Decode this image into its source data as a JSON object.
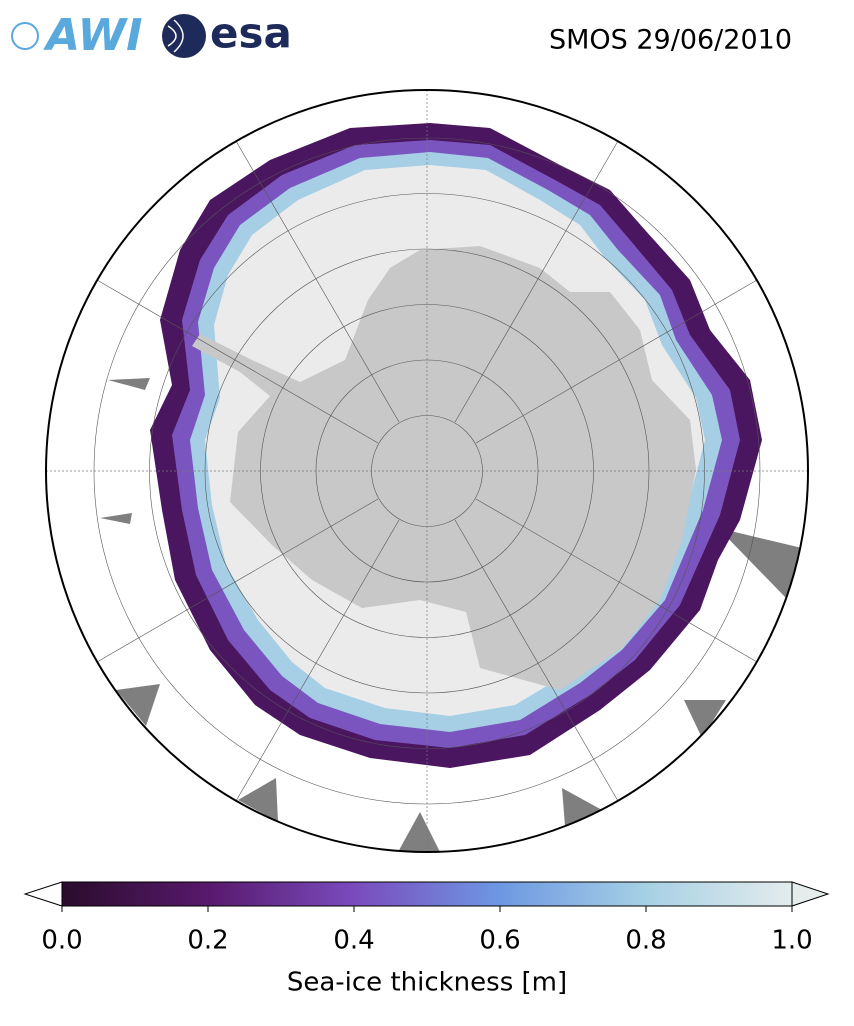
{
  "header": {
    "logos": [
      "AWI",
      "esa"
    ],
    "title": "SMOS 29/06/2010"
  },
  "colorbar": {
    "label": "Sea-ice thickness [m]",
    "lim": [
      0,
      1
    ],
    "ticks": [
      {
        "value": 0,
        "label": "0.0"
      },
      0.2,
      0.4,
      0.6,
      0.8,
      {
        "value": 1,
        "label": "1.0"
      }
    ],
    "colormap": [
      {
        "value": 0,
        "color": "#2a0c2c"
      },
      {
        "value": 0.2,
        "color": "#58196c"
      },
      {
        "value": 0.4,
        "color": "#7a4bbd"
      },
      {
        "value": 0.6,
        "color": "#6d98e2"
      },
      {
        "value": 0.8,
        "color": "#a6d0e4"
      },
      {
        "value": 1,
        "color": "#e4ecec"
      }
    ]
  }
}
